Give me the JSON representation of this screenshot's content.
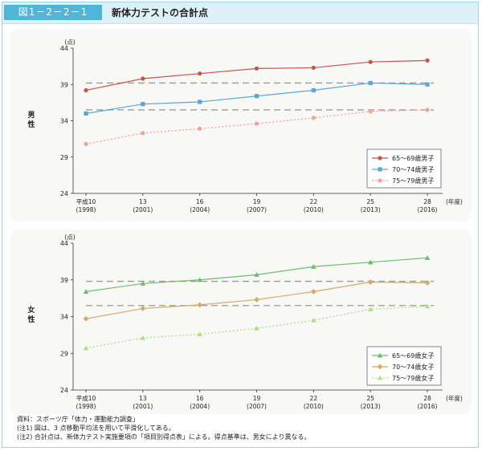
{
  "header": {
    "figure_label": "図1－2－2－1",
    "title": "新体力テストの合計点"
  },
  "colors": {
    "red": "#c9524a",
    "blue": "#5aa6d2",
    "salmon": "#eea496",
    "green": "#6cbd6a",
    "gold": "#d4aa66",
    "lightgreen": "#aee082",
    "dash": "#9a9a9a",
    "header_bg": "#dff1f8",
    "label_bg": "#4fb6d8"
  },
  "chart_data": [
    {
      "type": "line",
      "panel_label": "男性",
      "ylabel": "(点)",
      "xlabel": "(年度)",
      "ylim": [
        24,
        44
      ],
      "yticks": [
        24,
        29,
        34,
        39,
        44
      ],
      "categories": [
        "平成10\n(1998)",
        "13\n(2001)",
        "16\n(2004)",
        "19\n(2007)",
        "22\n(2010)",
        "25\n(2013)",
        "28\n(2016)"
      ],
      "reference_lines": [
        39.2,
        35.5
      ],
      "legend_position": "bottom-right",
      "series": [
        {
          "name": "65～69歳男子",
          "values": [
            38.2,
            39.8,
            40.5,
            41.2,
            41.3,
            42.1,
            42.3
          ],
          "color_key": "red",
          "marker": "circle",
          "dotted": false
        },
        {
          "name": "70～74歳男子",
          "values": [
            35.0,
            36.3,
            36.6,
            37.4,
            38.2,
            39.2,
            39.0
          ],
          "color_key": "blue",
          "marker": "square",
          "dotted": false
        },
        {
          "name": "75～79歳男子",
          "values": [
            30.8,
            32.3,
            32.9,
            33.6,
            34.4,
            35.3,
            35.5
          ],
          "color_key": "salmon",
          "marker": "circle",
          "dotted": true
        }
      ]
    },
    {
      "type": "line",
      "panel_label": "女性",
      "ylabel": "(点)",
      "xlabel": "(年度)",
      "ylim": [
        24,
        44
      ],
      "yticks": [
        24,
        29,
        34,
        39,
        44
      ],
      "categories": [
        "平成10\n(1998)",
        "13\n(2001)",
        "16\n(2004)",
        "19\n(2007)",
        "22\n(2010)",
        "25\n(2013)",
        "28\n(2016)"
      ],
      "reference_lines": [
        38.8,
        35.5
      ],
      "legend_position": "bottom-right",
      "series": [
        {
          "name": "65～69歳女子",
          "values": [
            37.4,
            38.5,
            39.0,
            39.7,
            40.8,
            41.4,
            42.0
          ],
          "color_key": "green",
          "marker": "triangle",
          "dotted": false
        },
        {
          "name": "70～74歳女子",
          "values": [
            33.7,
            35.1,
            35.6,
            36.3,
            37.4,
            38.7,
            38.6
          ],
          "color_key": "gold",
          "marker": "diamond",
          "dotted": false
        },
        {
          "name": "75～79歳女子",
          "values": [
            29.7,
            31.1,
            31.6,
            32.4,
            33.5,
            35.0,
            35.4
          ],
          "color_key": "lightgreen",
          "marker": "triangle",
          "dotted": true
        }
      ]
    }
  ],
  "footnotes": {
    "source": "資料：スポーツ庁「体力・運動能力調査」",
    "note1": "(注1) 図は、3 点移動平均法を用いて平滑化してある。",
    "note2": "(注2) 合計点は、新体力テスト実施要項の「項目別得点表」による。得点基準は、男女により異なる。"
  }
}
